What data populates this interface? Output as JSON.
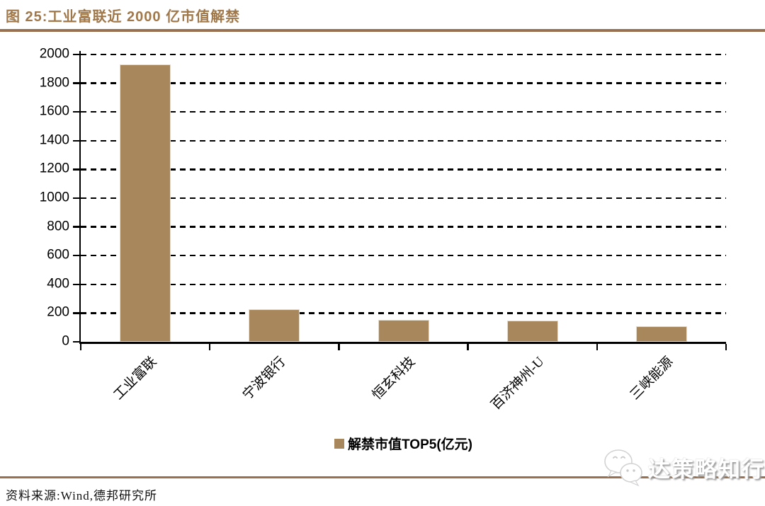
{
  "header": {
    "title": "图 25:工业富联近 2000 亿市值解禁"
  },
  "chart_data": {
    "type": "bar",
    "title": "工业富联近 2000 亿市值解禁",
    "categories": [
      "工业富联",
      "宁波银行",
      "恒玄科技",
      "百济神州-U",
      "三峡能源"
    ],
    "values": [
      1930,
      225,
      155,
      150,
      110
    ],
    "series_name": "解禁市值TOP5(亿元)",
    "xlabel": "",
    "ylabel": "",
    "ylim": [
      0,
      2000
    ],
    "yticks": [
      0,
      200,
      400,
      600,
      800,
      1000,
      1200,
      1400,
      1600,
      1800,
      2000
    ],
    "grid": "horizontal-dashed",
    "legend_position": "bottom-center",
    "bar_color": "#A8875C"
  },
  "legend": {
    "label": "解禁市值TOP5(亿元)"
  },
  "footer": {
    "source": "资料来源:Wind,德邦研究所",
    "watermark_text": "达策略知行",
    "watermark_icon": "wechat-icon"
  },
  "colors": {
    "title": "#A0784A",
    "rule": "#9A7150",
    "bar": "#A8875C",
    "axis": "#000000",
    "watermark_text": "#FFFFFF"
  }
}
